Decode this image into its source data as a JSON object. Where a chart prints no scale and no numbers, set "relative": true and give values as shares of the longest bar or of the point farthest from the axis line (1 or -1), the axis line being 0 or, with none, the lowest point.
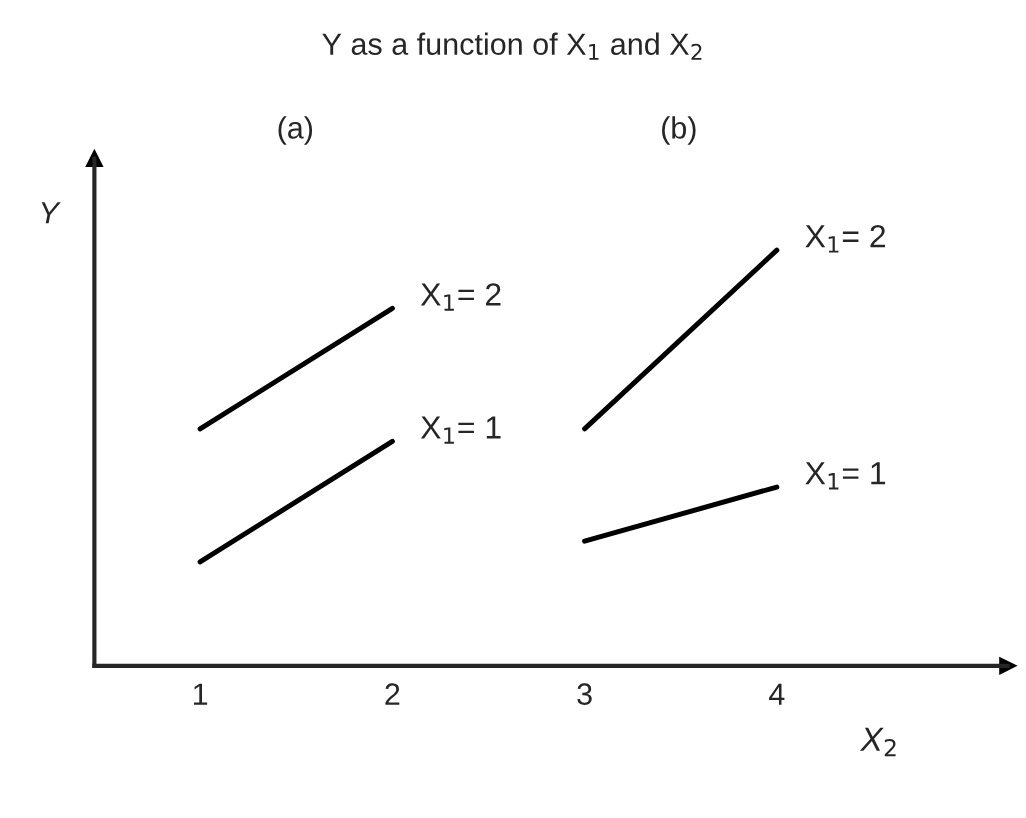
{
  "chart_data": {
    "type": "line",
    "title": "Y as a function of X$_{1}$ and X$_{2}$",
    "xlabel": "X$_{2}$",
    "ylabel": "Y",
    "relative": true,
    "xlim": [
      0.45,
      5.2
    ],
    "xticks": [
      1,
      2,
      3,
      4
    ],
    "grid": false,
    "legend": false,
    "marker": "none",
    "line_style": "solid",
    "series": [
      {
        "name": "X$_{1}$= 2",
        "color": "#000000",
        "x": [
          1,
          2
        ],
        "values": [
          0.57,
          0.86
        ]
      },
      {
        "name": "X$_{1}$= 1",
        "color": "#000000",
        "x": [
          1,
          2
        ],
        "values": [
          0.25,
          0.54
        ]
      },
      {
        "name": "X$_{1}$= 2",
        "color": "#000000",
        "x": [
          3,
          4
        ],
        "values": [
          0.57,
          1.0
        ]
      },
      {
        "name": "X$_{1}$= 1",
        "color": "#000000",
        "x": [
          3,
          4
        ],
        "values": [
          0.3,
          0.43
        ]
      }
    ],
    "annotations": [
      "(a)",
      "(b)"
    ]
  }
}
